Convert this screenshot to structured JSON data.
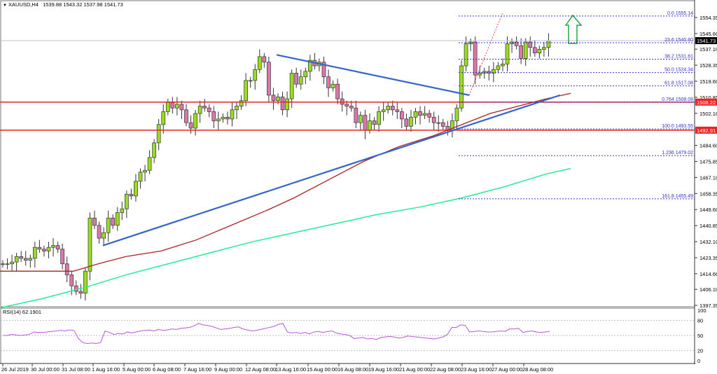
{
  "header": {
    "symbol": "XAUUSD,H4",
    "ohlc": "1539.88 1543.32 1537.98 1541.73",
    "dropdown_icon": "triangle-down-icon"
  },
  "rsi": {
    "label": "RSI(14) 62.1901",
    "levels": [
      "100",
      "80",
      "50",
      "20",
      "0"
    ]
  },
  "price_axis": {
    "ticks": [
      "1554.35",
      "1545.60",
      "1537.10",
      "1528.35",
      "1519.60",
      "1510.85",
      "1502.10",
      "1484.60",
      "1475.85",
      "1467.10",
      "1458.35",
      "1449.60",
      "1440.85",
      "1432.10",
      "1423.35",
      "1414.60",
      "1406.10",
      "1397.35"
    ],
    "current_price_label": "1541.73",
    "support_label_upper": "1508.22",
    "support_label_lower": "1492.91"
  },
  "time_axis": {
    "ticks": [
      "26 Jul 2019",
      "30 Jul 00:00",
      "31 Jul 08:00",
      "1 Aug 16:00",
      "5 Aug 00:00",
      "6 Aug 08:00",
      "7 Aug 16:00",
      "9 Aug 00:00",
      "12 Aug 08:00",
      "13 Aug 16:00",
      "15 Aug 00:00",
      "16 Aug 08:00",
      "19 Aug 16:00",
      "21 Aug 00:00",
      "22 Aug 08:00",
      "23 Aug 16:00",
      "27 Aug 00:00",
      "28 Aug 08:00"
    ]
  },
  "fib_levels": [
    {
      "label": "0.0 1555.14"
    },
    {
      "label": "23.6 1540.60"
    },
    {
      "label": "38.2 1531.61"
    },
    {
      "label": "50.0 1524.34"
    },
    {
      "label": "61.8 1517.08"
    },
    {
      "label": "0.764 1508.08"
    },
    {
      "label": "100.0 1493.55"
    },
    {
      "label": "1.236 1479.02"
    },
    {
      "label": "161.8 1455.49"
    }
  ],
  "colors": {
    "bull": "#99dd22",
    "bear": "#dd77aa",
    "sma100": "#aa2222",
    "sma200": "#22ee99",
    "trendline": "#3366cc",
    "support": "#ee2222",
    "fib": "#3333cc",
    "rsi": "#bb55dd",
    "arrow": "#22aa44"
  },
  "chart_data": {
    "type": "candlestick",
    "title": "XAUUSD,H4",
    "subtitle": "1539.88 1543.32 1537.98 1541.73",
    "xlabel": "",
    "ylabel": "",
    "ylim": [
      1397.35,
      1558
    ],
    "x_ticks": [
      "26 Jul 2019",
      "30 Jul 00:00",
      "31 Jul 08:00",
      "1 Aug 16:00",
      "5 Aug 00:00",
      "6 Aug 08:00",
      "7 Aug 16:00",
      "9 Aug 00:00",
      "12 Aug 08:00",
      "13 Aug 16:00",
      "15 Aug 00:00",
      "16 Aug 08:00",
      "19 Aug 16:00",
      "21 Aug 00:00",
      "22 Aug 08:00",
      "23 Aug 16:00",
      "27 Aug 00:00",
      "28 Aug 08:00"
    ],
    "last_ohlc": {
      "open": 1539.88,
      "high": 1543.32,
      "low": 1537.98,
      "close": 1541.73
    },
    "horizontal_support_lines": [
      1508.22,
      1492.91
    ],
    "fibonacci": [
      {
        "level": "0.0",
        "price": 1555.14
      },
      {
        "level": "23.6",
        "price": 1540.6
      },
      {
        "level": "38.2",
        "price": 1531.61
      },
      {
        "level": "50.0",
        "price": 1524.34
      },
      {
        "level": "61.8",
        "price": 1517.08
      },
      {
        "level": "0.764",
        "price": 1508.08
      },
      {
        "level": "100.0",
        "price": 1493.55
      },
      {
        "level": "1.236",
        "price": 1479.02
      },
      {
        "level": "161.8",
        "price": 1455.49
      }
    ],
    "series": [
      {
        "name": "SMA 100 (red)",
        "points_x_price": [
          [
            0,
            1416
          ],
          [
            100,
            1416
          ],
          [
            200,
            1423
          ],
          [
            300,
            1436
          ],
          [
            400,
            1452
          ],
          [
            500,
            1472
          ],
          [
            600,
            1486
          ],
          [
            700,
            1497
          ],
          [
            760,
            1505
          ],
          [
            815,
            1511
          ]
        ]
      },
      {
        "name": "SMA 200 (green)",
        "points_x_price": [
          [
            0,
            1395
          ],
          [
            100,
            1405
          ],
          [
            200,
            1420
          ],
          [
            300,
            1432
          ],
          [
            400,
            1442
          ],
          [
            500,
            1450
          ],
          [
            600,
            1458
          ],
          [
            700,
            1470
          ],
          [
            815,
            1479
          ]
        ]
      },
      {
        "name": "Bullish trendline (blue)",
        "points_x_price": [
          [
            147,
            1430
          ],
          [
            800,
            1512
          ]
        ]
      },
      {
        "name": "Bearish trendline (blue)",
        "points_x_price": [
          [
            395,
            1534
          ],
          [
            670,
            1512
          ]
        ]
      }
    ],
    "rsi": {
      "name": "RSI(14)",
      "last": 62.1901,
      "levels": [
        20,
        50,
        80
      ],
      "ylim": [
        0,
        100
      ]
    },
    "annotations": [
      "Green up arrow near 1555 suggesting upside",
      "Red dotted projection line from breakout"
    ]
  }
}
